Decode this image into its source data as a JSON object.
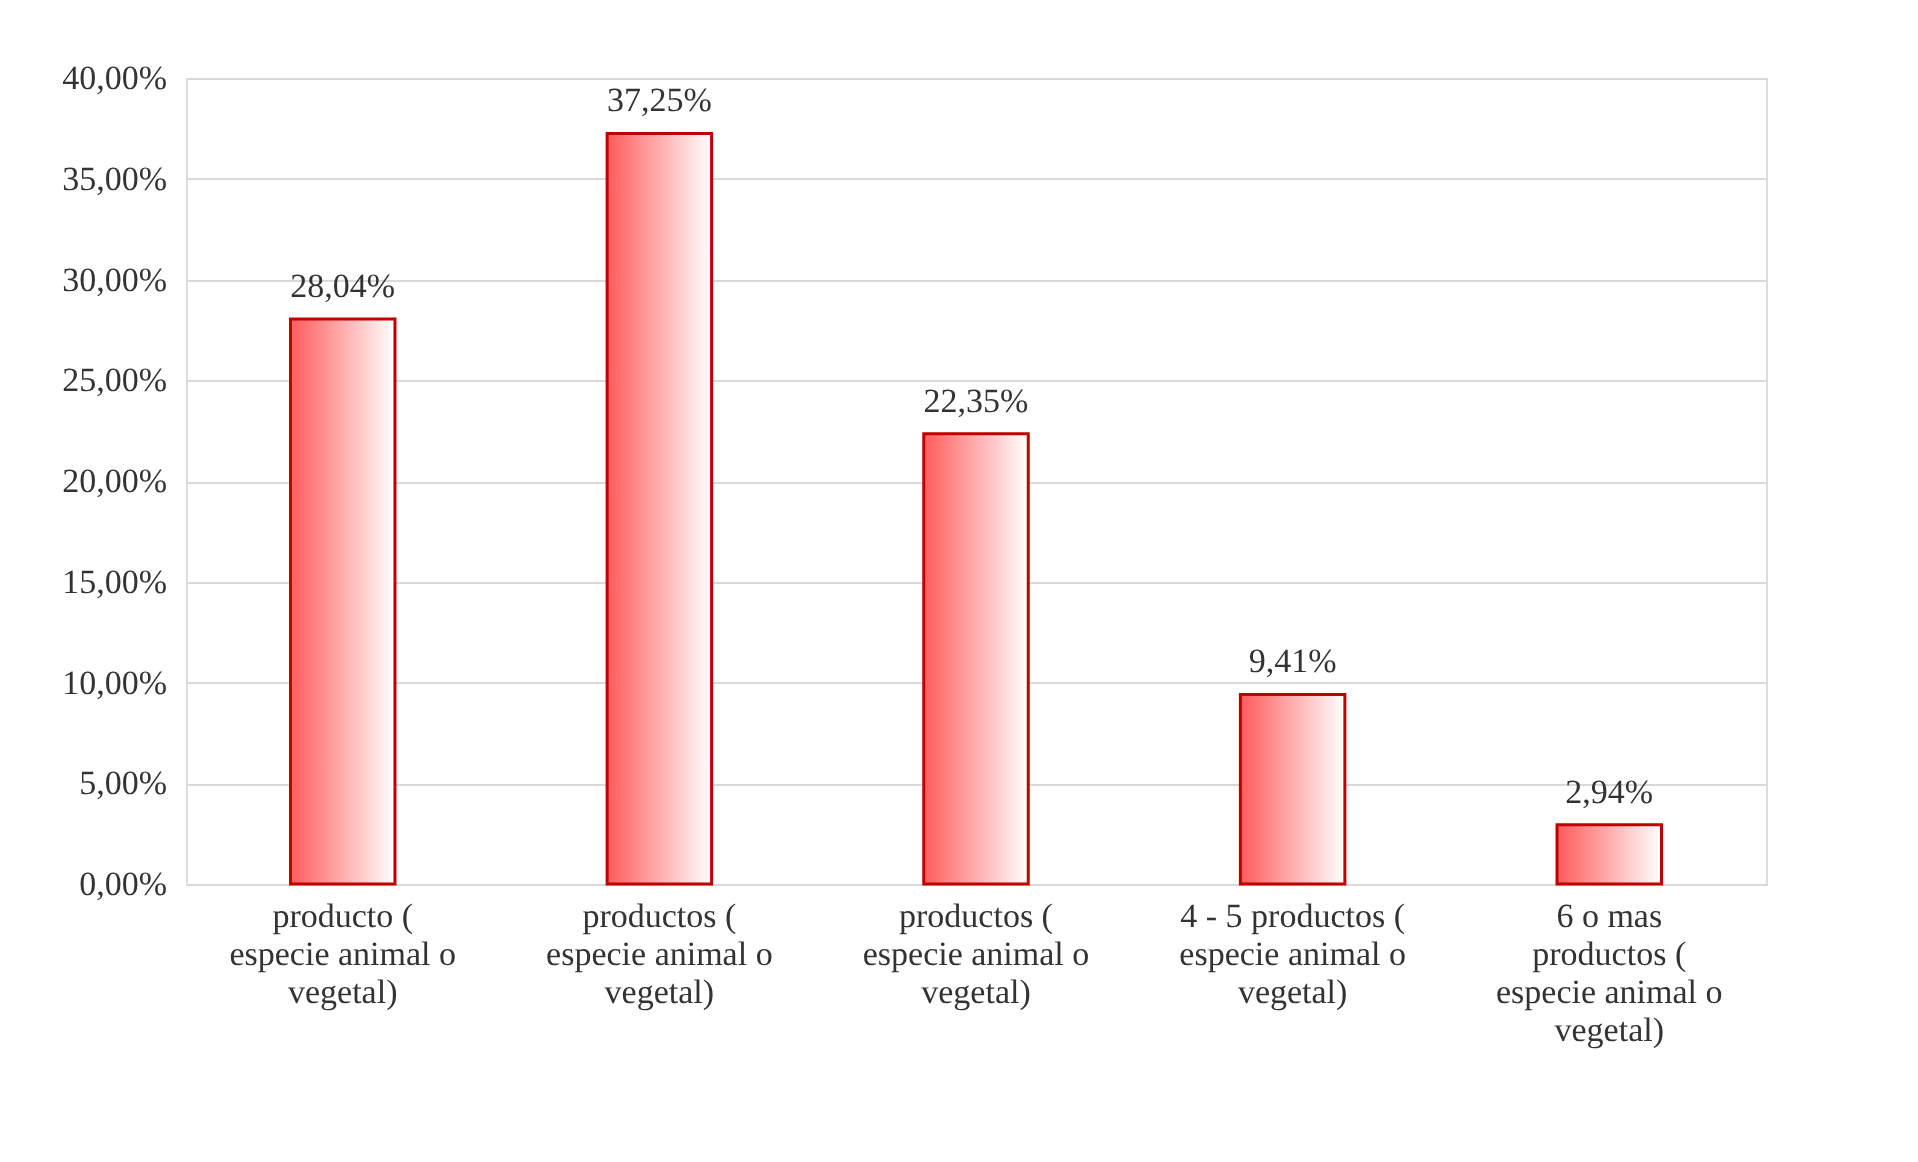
{
  "chart_data": {
    "type": "bar",
    "categories": [
      "producto (\nespecie animal o\nvegetal)",
      "productos (\nespecie animal o\nvegetal)",
      "productos (\nespecie animal o\nvegetal)",
      "4 - 5 productos (\nespecie animal o\nvegetal)",
      "6 o mas\nproductos (\nespecie animal o\nvegetal)"
    ],
    "values": [
      28.04,
      37.25,
      22.35,
      9.41,
      2.94
    ],
    "value_labels": [
      "28,04%",
      "37,25%",
      "22,35%",
      "9,41%",
      "2,94%"
    ],
    "color": "#c00000",
    "ylim": [
      0,
      40
    ],
    "yticks": [
      {
        "value": 0,
        "label": "0,00%"
      },
      {
        "value": 5,
        "label": "5,00%"
      },
      {
        "value": 10,
        "label": "10,00%"
      },
      {
        "value": 15,
        "label": "15,00%"
      },
      {
        "value": 20,
        "label": "20,00%"
      },
      {
        "value": 25,
        "label": "25,00%"
      },
      {
        "value": 30,
        "label": "30,00%"
      },
      {
        "value": 35,
        "label": "35,00%"
      },
      {
        "value": 40,
        "label": "40,00%"
      }
    ],
    "grid": "y"
  }
}
